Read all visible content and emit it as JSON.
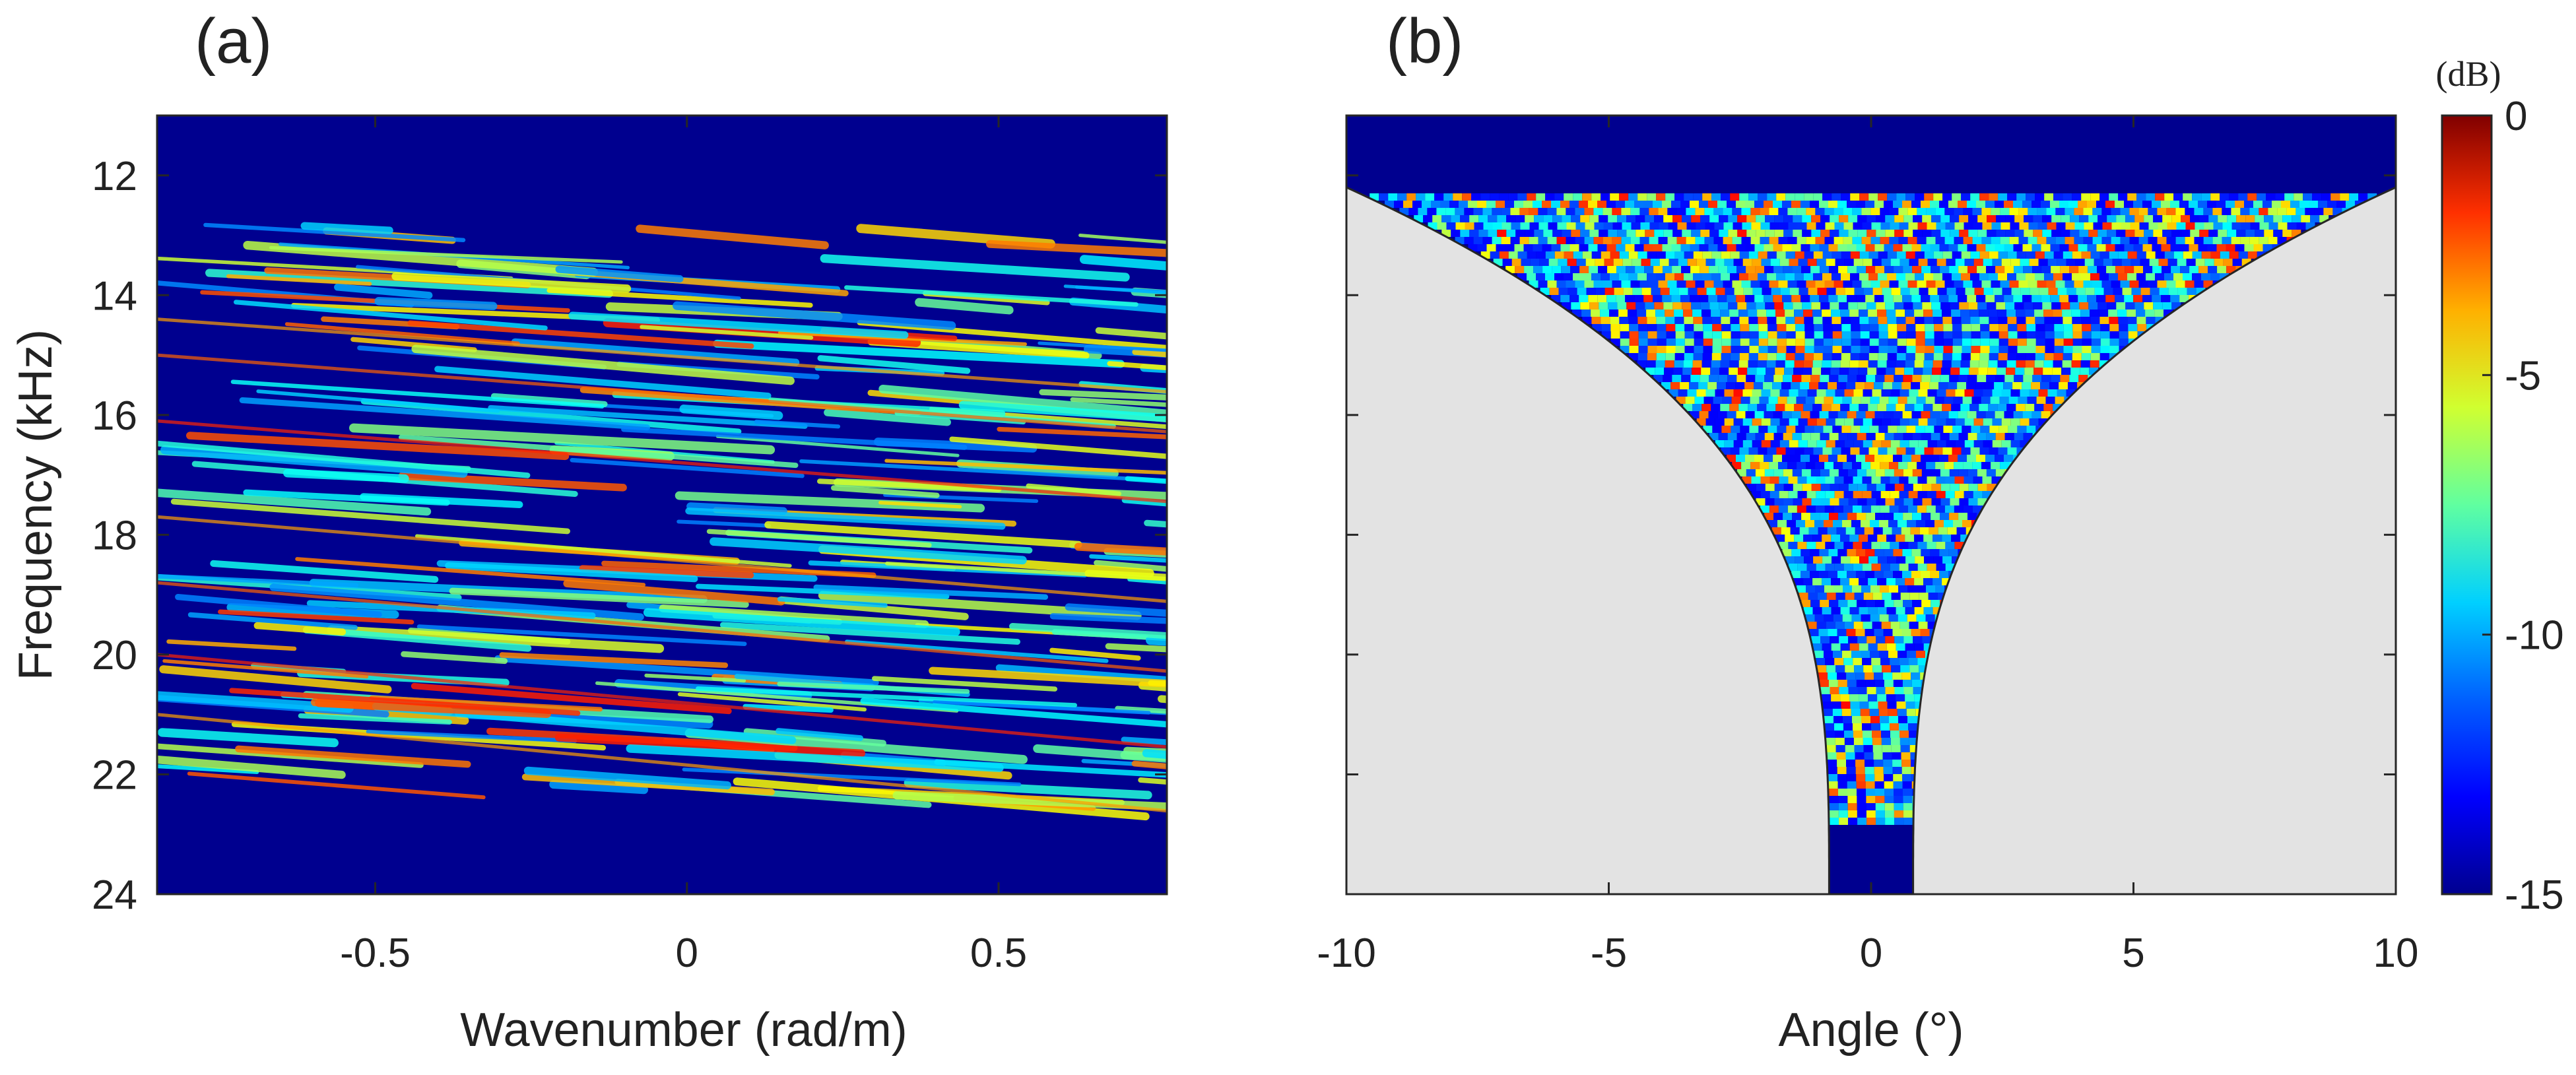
{
  "colors": {
    "axis": "#262626",
    "mask": "#e3e3e3",
    "background": "#ffffff",
    "colormap": [
      "#00008f",
      "#0000ff",
      "#0080ff",
      "#00ffff",
      "#80ff80",
      "#ffff00",
      "#ff8000",
      "#ff0000",
      "#800000"
    ]
  },
  "chart_data": [
    {
      "panel_label": "(a)",
      "type": "heatmap",
      "xlabel": "Wavenumber (rad/m)",
      "ylabel": "Frequency (kHz)",
      "xlim": [
        -0.85,
        0.77
      ],
      "ylim": [
        11,
        24
      ],
      "y_reversed": true,
      "xticks": [
        -0.5,
        0,
        0.5
      ],
      "xtick_labels": [
        "-0.5",
        "0",
        "0.5"
      ],
      "yticks": [
        12,
        14,
        16,
        18,
        20,
        22,
        24
      ],
      "ytick_labels": [
        "12",
        "14",
        "16",
        "18",
        "20",
        "22",
        "24"
      ],
      "signal_band_khz": [
        12.8,
        22.4
      ],
      "value_range_db": [
        -15,
        0
      ]
    },
    {
      "panel_label": "(b)",
      "type": "heatmap",
      "xlabel": "Angle (°)",
      "xlim": [
        -10,
        10
      ],
      "ylim": [
        11,
        24
      ],
      "y_reversed": true,
      "xticks": [
        -10,
        -5,
        0,
        5,
        10
      ],
      "xtick_labels": [
        "-10",
        "-5",
        "0",
        "5",
        "10"
      ],
      "yticks": [
        12,
        14,
        16,
        18,
        20,
        22,
        24
      ],
      "masked_region": "outside visible angle cone",
      "cone_half_angle_deg_at_24khz": 0.8,
      "value_range_db": [
        -15,
        0
      ]
    }
  ],
  "colorbar": {
    "unit_label": "(dB)",
    "range": [
      -15,
      0
    ],
    "ticks": [
      0,
      -5,
      -10,
      -15
    ],
    "tick_labels": [
      "0",
      "-5",
      "-10",
      "-15"
    ]
  }
}
